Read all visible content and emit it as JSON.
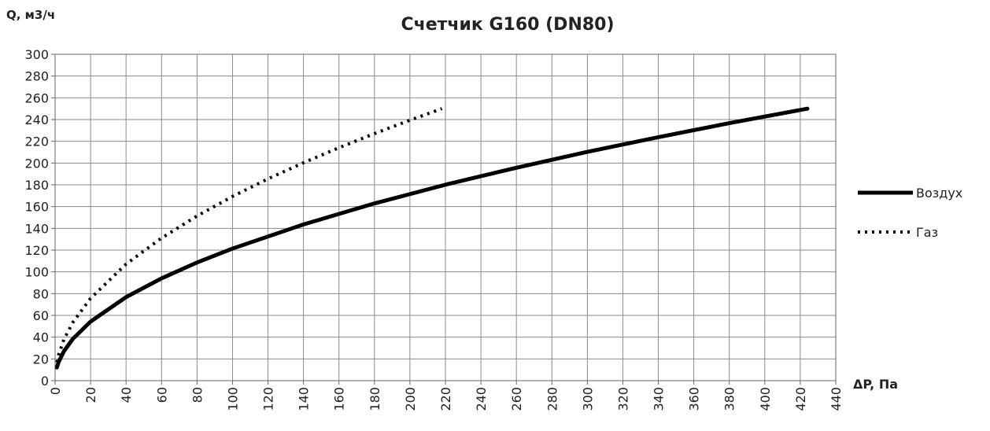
{
  "chart_data": {
    "type": "line",
    "title": "Счетчик G160 (DN80)",
    "y_label": "Q, м3/ч",
    "x_label": "ΔP, Па",
    "xlim": [
      0,
      440
    ],
    "ylim": [
      0,
      300
    ],
    "xticks": [
      0,
      20,
      40,
      60,
      80,
      100,
      120,
      140,
      160,
      180,
      200,
      220,
      240,
      260,
      280,
      300,
      320,
      340,
      360,
      380,
      400,
      420,
      440
    ],
    "yticks": [
      0,
      20,
      40,
      60,
      80,
      100,
      120,
      140,
      160,
      180,
      200,
      220,
      240,
      260,
      280,
      300
    ],
    "grid": true,
    "legend": "right",
    "series": [
      {
        "name": "Воздух",
        "color": "#000000",
        "style": "solid",
        "x": [
          1,
          2,
          5,
          10,
          20,
          40,
          60,
          80,
          100,
          140,
          180,
          220,
          260,
          300,
          340,
          380,
          424
        ],
        "values": [
          12.1,
          17.2,
          27.1,
          38.4,
          54.3,
          76.8,
          94.0,
          108.6,
          121.4,
          143.6,
          162.9,
          180.1,
          195.7,
          210.3,
          223.8,
          236.7,
          250
        ]
      },
      {
        "name": "Газ",
        "color": "#000000",
        "style": "dotted",
        "x": [
          1,
          2,
          5,
          10,
          20,
          40,
          60,
          80,
          100,
          120,
          140,
          160,
          180,
          200,
          218
        ],
        "values": [
          16.9,
          23.9,
          37.9,
          53.5,
          75.7,
          107.1,
          131.1,
          151.4,
          169.3,
          185.5,
          200.3,
          214.1,
          227.1,
          239.4,
          250
        ]
      }
    ]
  }
}
